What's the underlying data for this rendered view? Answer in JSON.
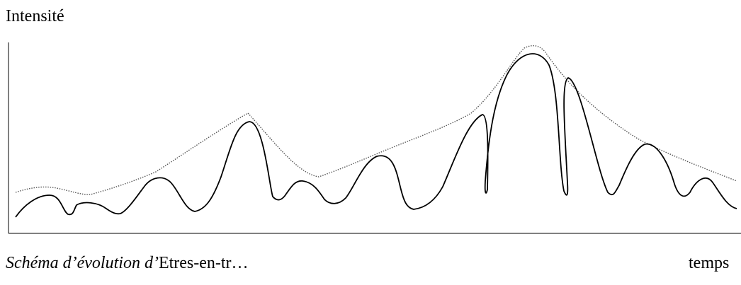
{
  "diagram": {
    "ylabel": "Intensité",
    "xlabel": "temps",
    "caption": {
      "italic_part": "Schéma d’évolution d’",
      "upright_part": "Etres-en-tr…"
    }
  },
  "style": {
    "line_color": "#000000",
    "dotted_line_color": "#555555",
    "background": "#ffffff"
  }
}
